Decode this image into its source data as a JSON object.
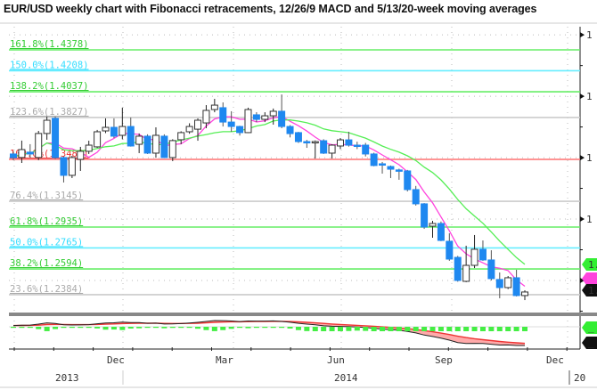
{
  "title": "EUR/USD weekly chart with Fibonacci retracements, 12/26/9 MACD and 5/13/20-week moving averages",
  "chart_data": {
    "type": "candlestick",
    "title": "EUR/USD weekly chart with Fibonacci retracements, 12/26/9 MACD and 5/13/20-week moving averages",
    "ylim": [
      1.229,
      1.456
    ],
    "grid": true,
    "colors": {
      "up": "#ffffff",
      "down": "#1e88f0",
      "ma_fast": "#ff44dd",
      "ma_slow": "#55ee55",
      "macd": "#222222",
      "signal": "#ee3333",
      "histogram": "#44ee44"
    },
    "moving_averages": [
      5,
      13
    ],
    "fibonacci": [
      {
        "label": "161.8%(1.4378)",
        "value": 1.4378,
        "color": "#66ee66"
      },
      {
        "label": "150.0%(1.4208)",
        "value": 1.4208,
        "color": "#66eeff"
      },
      {
        "label": "138.2%(1.4037)",
        "value": 1.4037,
        "color": "#66ee66"
      },
      {
        "label": "123.6%(1.3827)",
        "value": 1.3827,
        "color": "#cccccc"
      },
      {
        "label": "100.0%(1.3486)",
        "value": 1.3486,
        "color": "#ff7070"
      },
      {
        "label": "76.4%(1.3145)",
        "value": 1.3145,
        "color": "#cccccc"
      },
      {
        "label": "61.8%(1.2935)",
        "value": 1.2935,
        "color": "#66ee66"
      },
      {
        "label": "50.0%(1.2765)",
        "value": 1.2765,
        "color": "#66eeff"
      },
      {
        "label": "38.2%(1.2594)",
        "value": 1.2594,
        "color": "#66ee66"
      },
      {
        "label": "23.6%(1.2384)",
        "value": 1.2384,
        "color": "#cccccc"
      }
    ],
    "y_ticks": [
      {
        "value": 1.45,
        "label": "1"
      },
      {
        "value": 1.4,
        "label": "1"
      },
      {
        "value": 1.35,
        "label": "1"
      },
      {
        "value": 1.3,
        "label": "1"
      },
      {
        "value": 1.25,
        "label": ""
      }
    ],
    "x_month_labels": [
      {
        "date": "2013-12-01",
        "label": "Dec"
      },
      {
        "date": "2014-03-01",
        "label": "Mar"
      },
      {
        "date": "2014-06-01",
        "label": "Jun"
      },
      {
        "date": "2014-09-01",
        "label": "Sep"
      },
      {
        "date": "2014-12-01",
        "label": "Dec"
      }
    ],
    "x_year_labels": [
      {
        "label": "2013"
      },
      {
        "label": "2014"
      },
      {
        "label": "20"
      }
    ],
    "right_tags": [
      {
        "label": "1.",
        "color": "#33ee33"
      },
      {
        "label": "",
        "color": "#ff44dd"
      },
      {
        "label": "1.",
        "color": "#111111"
      }
    ],
    "macd_tags": [
      {
        "label": "_",
        "color": "#33ee33"
      },
      {
        "label": "_",
        "color": "#111111"
      }
    ],
    "candles": [
      [
        1.353,
        1.355,
        1.348,
        1.35
      ],
      [
        1.3501,
        1.3639,
        1.3457,
        1.3566
      ],
      [
        1.3545,
        1.361,
        1.35,
        1.353
      ],
      [
        1.3501,
        1.3718,
        1.348,
        1.3697
      ],
      [
        1.3697,
        1.3834,
        1.3646,
        1.3805
      ],
      [
        1.382,
        1.3834,
        1.349,
        1.3501
      ],
      [
        1.3501,
        1.351,
        1.3298,
        1.3356
      ],
      [
        1.3356,
        1.3515,
        1.3334,
        1.3501
      ],
      [
        1.3486,
        1.3588,
        1.3392,
        1.3552
      ],
      [
        1.3552,
        1.3638,
        1.353,
        1.3602
      ],
      [
        1.3588,
        1.3726,
        1.358,
        1.3711
      ],
      [
        1.3718,
        1.382,
        1.37,
        1.3747
      ],
      [
        1.3747,
        1.382,
        1.366,
        1.3675
      ],
      [
        1.3682,
        1.3907,
        1.365,
        1.3754
      ],
      [
        1.3754,
        1.3827,
        1.359,
        1.3595
      ],
      [
        1.3609,
        1.3697,
        1.3537,
        1.3675
      ],
      [
        1.3675,
        1.369,
        1.353,
        1.3537
      ],
      [
        1.3537,
        1.3747,
        1.35,
        1.3682
      ],
      [
        1.3675,
        1.369,
        1.3501,
        1.3501
      ],
      [
        1.3501,
        1.365,
        1.3472,
        1.3639
      ],
      [
        1.3646,
        1.3715,
        1.361,
        1.3704
      ],
      [
        1.3711,
        1.378,
        1.3695,
        1.3754
      ],
      [
        1.3732,
        1.382,
        1.3638,
        1.3805
      ],
      [
        1.3783,
        1.3928,
        1.374,
        1.3885
      ],
      [
        1.3892,
        1.3979,
        1.387,
        1.3928
      ],
      [
        1.3907,
        1.395,
        1.3754,
        1.379
      ],
      [
        1.379,
        1.3878,
        1.3711,
        1.3754
      ],
      [
        1.3754,
        1.376,
        1.368,
        1.3704
      ],
      [
        1.3704,
        1.3907,
        1.37,
        1.3892
      ],
      [
        1.3849,
        1.387,
        1.379,
        1.3812
      ],
      [
        1.3812,
        1.387,
        1.379,
        1.3841
      ],
      [
        1.3841,
        1.39,
        1.3769,
        1.3878
      ],
      [
        1.3878,
        1.4015,
        1.374,
        1.3754
      ],
      [
        1.3754,
        1.3765,
        1.3665,
        1.3696
      ],
      [
        1.3704,
        1.371,
        1.362,
        1.3631
      ],
      [
        1.3631,
        1.3645,
        1.358,
        1.3624
      ],
      [
        1.3631,
        1.364,
        1.3493,
        1.3631
      ],
      [
        1.3638,
        1.365,
        1.353,
        1.3537
      ],
      [
        1.3537,
        1.361,
        1.3493,
        1.3602
      ],
      [
        1.3595,
        1.366,
        1.357,
        1.3645
      ],
      [
        1.3645,
        1.3711,
        1.359,
        1.3602
      ],
      [
        1.3602,
        1.363,
        1.357,
        1.36
      ],
      [
        1.3602,
        1.362,
        1.351,
        1.353
      ],
      [
        1.353,
        1.354,
        1.343,
        1.3436
      ],
      [
        1.345,
        1.3465,
        1.337,
        1.3443
      ],
      [
        1.3428,
        1.3436,
        1.3334,
        1.3406
      ],
      [
        1.34,
        1.341,
        1.332,
        1.3398
      ],
      [
        1.3392,
        1.34,
        1.3225,
        1.324
      ],
      [
        1.324,
        1.327,
        1.311,
        1.3124
      ],
      [
        1.3124,
        1.313,
        1.292,
        1.2935
      ],
      [
        1.2942,
        1.2986,
        1.2848,
        1.2964
      ],
      [
        1.2964,
        1.298,
        1.282,
        1.2826
      ],
      [
        1.2819,
        1.2884,
        1.266,
        1.2674
      ],
      [
        1.2688,
        1.27,
        1.249,
        1.25
      ],
      [
        1.2493,
        1.2783,
        1.2486,
        1.2623
      ],
      [
        1.2623,
        1.287,
        1.2601,
        1.2754
      ],
      [
        1.2754,
        1.2826,
        1.266,
        1.2667
      ],
      [
        1.2667,
        1.2746,
        1.25,
        1.2515
      ],
      [
        1.2508,
        1.2565,
        1.2355,
        1.2442
      ],
      [
        1.2442,
        1.2536,
        1.243,
        1.2522
      ],
      [
        1.2522,
        1.2587,
        1.237,
        1.2377
      ],
      [
        1.2377,
        1.242,
        1.234,
        1.2406
      ]
    ]
  }
}
